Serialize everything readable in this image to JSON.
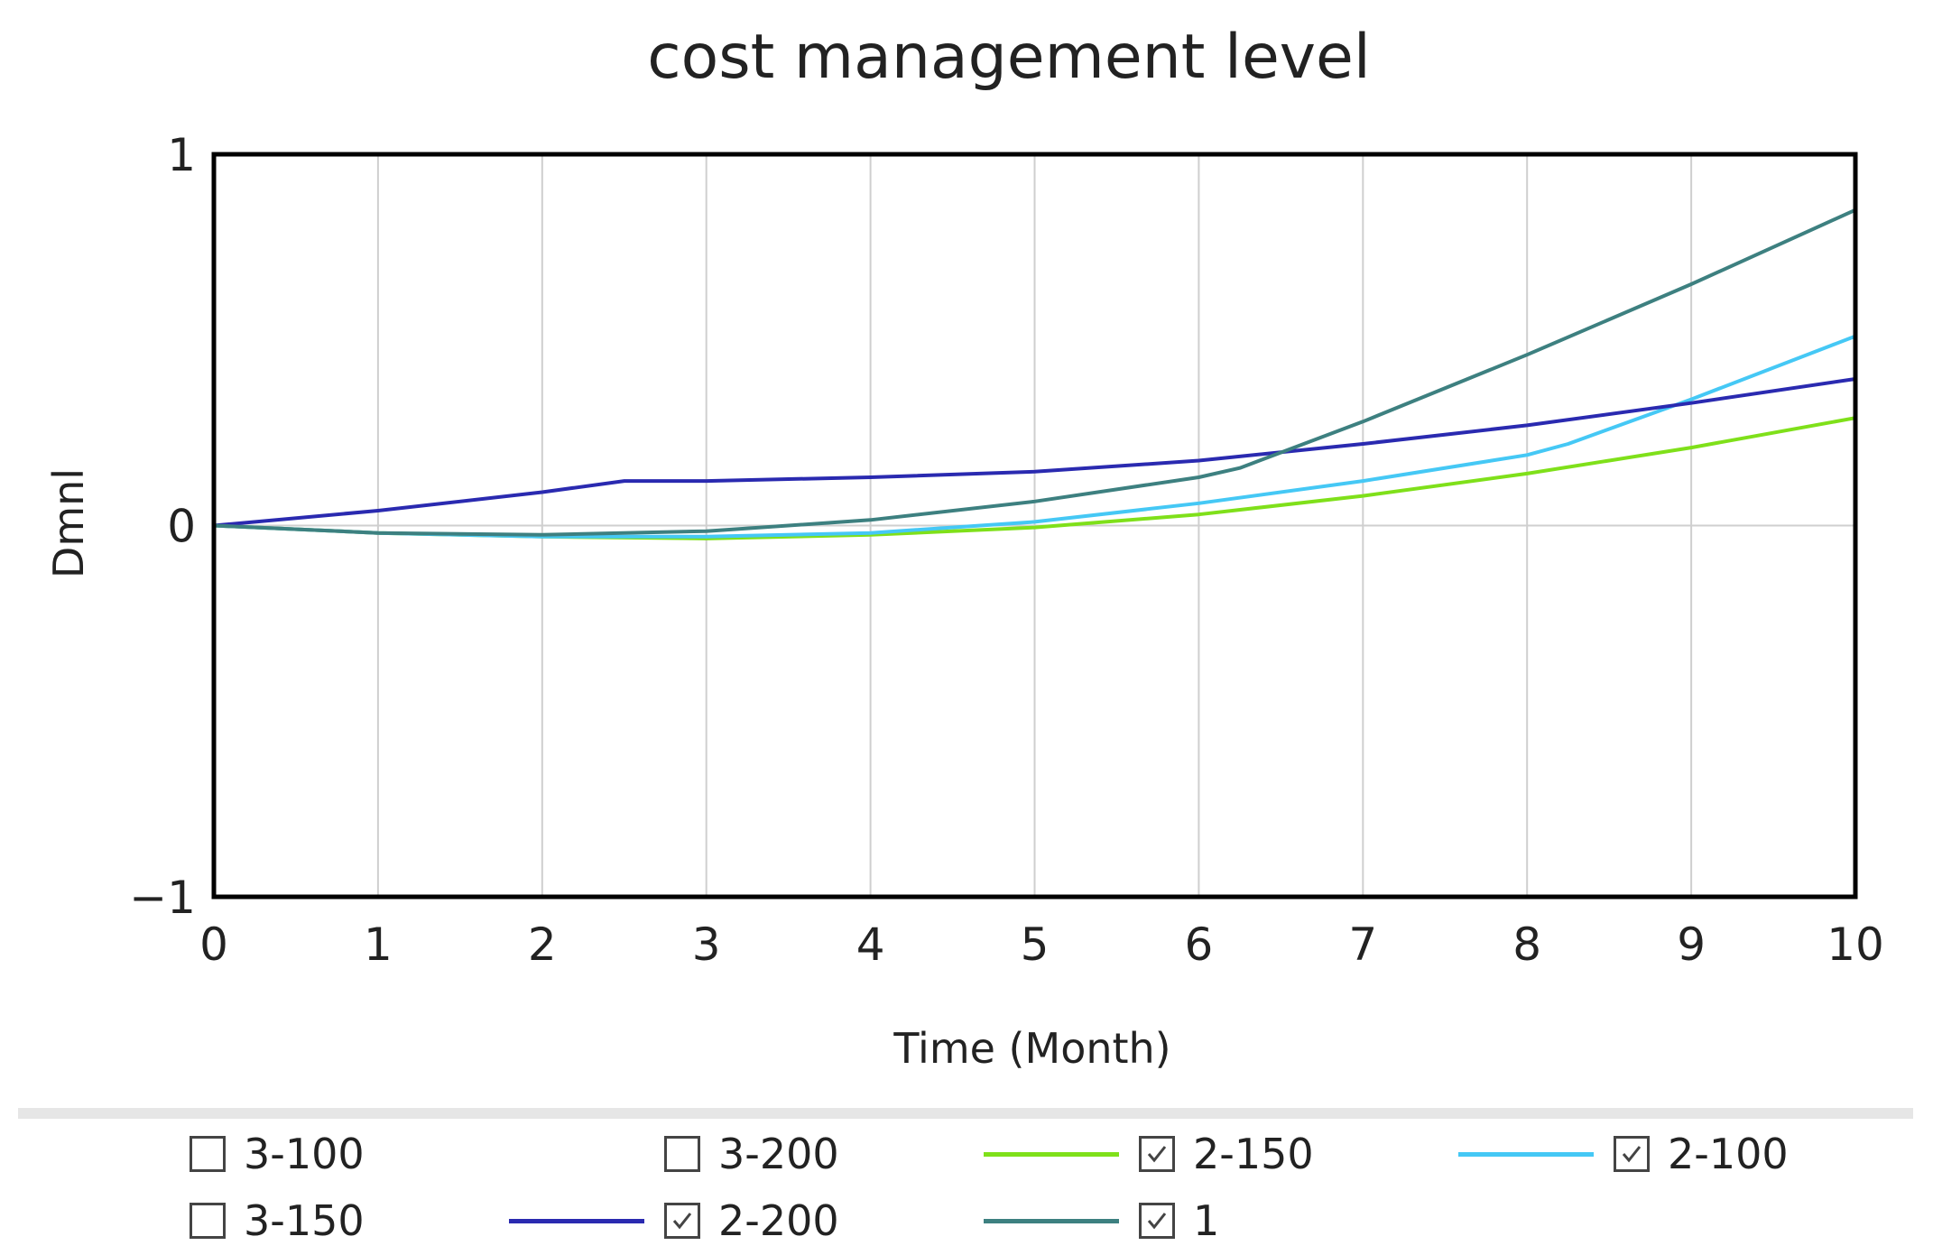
{
  "chart_data": {
    "type": "line",
    "title": "cost management level",
    "xlabel": "Time (Month)",
    "ylabel": "Dmnl",
    "xlim": [
      0,
      10
    ],
    "ylim": [
      -1,
      1
    ],
    "x_ticks": [
      "0",
      "1",
      "2",
      "3",
      "4",
      "5",
      "6",
      "7",
      "8",
      "9",
      "10"
    ],
    "y_ticks": [
      "1",
      "0",
      "−1"
    ],
    "grid": true,
    "legend_position": "bottom",
    "series": [
      {
        "name": "2-150",
        "color": "#7fe01a",
        "x": [
          0,
          1,
          2,
          3,
          4,
          5,
          6,
          7,
          8,
          9,
          10
        ],
        "y": [
          0,
          -0.02,
          -0.03,
          -0.035,
          -0.025,
          -0.005,
          0.03,
          0.08,
          0.14,
          0.21,
          0.29
        ]
      },
      {
        "name": "2-100",
        "color": "#45c8f5",
        "x": [
          0,
          1,
          2,
          3,
          4,
          5,
          6,
          7,
          8,
          8.25,
          9,
          10
        ],
        "y": [
          0,
          -0.02,
          -0.03,
          -0.03,
          -0.02,
          0.01,
          0.06,
          0.12,
          0.19,
          0.22,
          0.34,
          0.51
        ]
      },
      {
        "name": "2-200",
        "color": "#2a2ab0",
        "x": [
          0,
          1,
          2,
          2.5,
          3,
          4,
          5,
          6,
          7,
          8,
          9,
          10
        ],
        "y": [
          0,
          0.04,
          0.09,
          0.12,
          0.12,
          0.13,
          0.145,
          0.175,
          0.22,
          0.27,
          0.33,
          0.395
        ]
      },
      {
        "name": "1",
        "color": "#3d8080",
        "x": [
          0,
          1,
          2,
          3,
          4,
          5,
          6,
          6.25,
          7,
          8,
          9,
          10
        ],
        "y": [
          0,
          -0.02,
          -0.025,
          -0.015,
          0.015,
          0.065,
          0.13,
          0.155,
          0.28,
          0.46,
          0.65,
          0.85
        ]
      }
    ]
  },
  "legend": {
    "items": [
      {
        "key": "3-100",
        "label": "3-100",
        "checked": false,
        "color": ""
      },
      {
        "key": "3-200",
        "label": "3-200",
        "checked": false,
        "color": ""
      },
      {
        "key": "2-150",
        "label": "2-150",
        "checked": true,
        "color": "#7fe01a"
      },
      {
        "key": "2-100",
        "label": "2-100",
        "checked": true,
        "color": "#45c8f5"
      },
      {
        "key": "3-150",
        "label": "3-150",
        "checked": false,
        "color": ""
      },
      {
        "key": "2-200",
        "label": "2-200",
        "checked": true,
        "color": "#2a2ab0"
      },
      {
        "key": "1",
        "label": "1",
        "checked": true,
        "color": "#3d8080"
      }
    ]
  }
}
